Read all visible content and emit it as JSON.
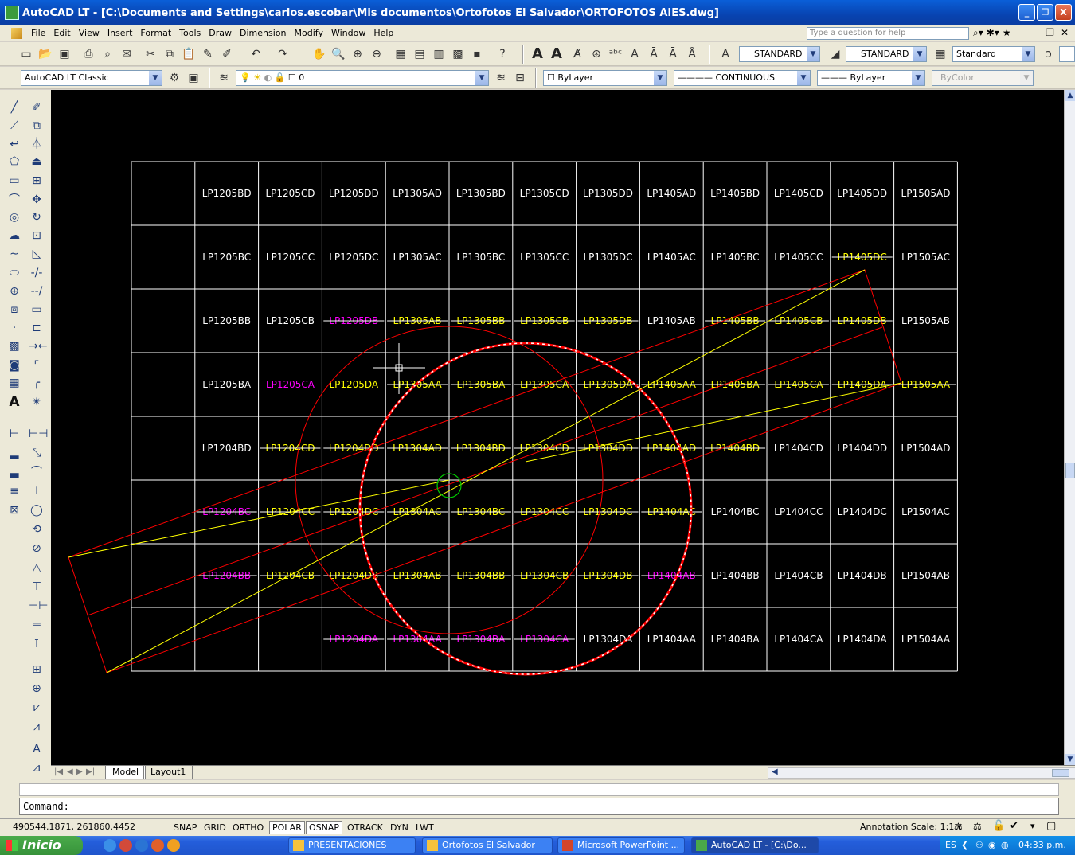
{
  "window": {
    "title": "AutoCAD LT - [C:\\Documents and Settings\\carlos.escobar\\Mis documentos\\Ortofotos El Salvador\\ORTOFOTOS AIES.dwg]",
    "buttons": [
      "_",
      "❐",
      "X"
    ]
  },
  "menubar": {
    "items": [
      "File",
      "Edit",
      "View",
      "Insert",
      "Format",
      "Tools",
      "Draw",
      "Dimension",
      "Modify",
      "Window",
      "Help"
    ],
    "help_placeholder": "Type a question for help"
  },
  "toolbar": {
    "text_style": "STANDARD",
    "dim_style": "STANDARD",
    "table_style": "Standard",
    "workspace": "AutoCAD LT Classic",
    "layer": "0",
    "color": "ByLayer",
    "linetype": "CONTINUOUS",
    "lineweight": "ByLayer",
    "plotstyle": "ByColor"
  },
  "drawing": {
    "grid": {
      "rows": [
        [
          "",
          "LP1205BD",
          "LP1205CD",
          "LP1205DD",
          "LP1305AD",
          "LP1305BD",
          "LP1305CD",
          "LP1305DD",
          "LP1405AD",
          "LP1405BD",
          "LP1405CD",
          "LP1405DD",
          "LP1505AD"
        ],
        [
          "",
          "LP1205BC",
          "LP1205CC",
          "LP1205DC",
          "LP1305AC",
          "LP1305BC",
          "LP1305CC",
          "LP1305DC",
          "LP1405AC",
          "LP1405BC",
          "LP1405CC",
          "LP1405DC",
          "LP1505AC"
        ],
        [
          "",
          "LP1205BB",
          "LP1205CB",
          "LP1205DB",
          "LP1305AB",
          "LP1305BB",
          "LP1305CB",
          "LP1305DB",
          "LP1405AB",
          "LP1405BB",
          "LP1405CB",
          "LP1405DB",
          "LP1505AB"
        ],
        [
          "",
          "LP1205BA",
          "LP1205CA",
          "LP1205DA",
          "LP1305AA",
          "LP1305BA",
          "LP1305CA",
          "LP1305DA",
          "LP1405AA",
          "LP1405BA",
          "LP1405CA",
          "LP1405DA",
          "LP1505AA"
        ],
        [
          "",
          "LP1204BD",
          "LP1204CD",
          "LP1204DD",
          "LP1304AD",
          "LP1304BD",
          "LP1304CD",
          "LP1304DD",
          "LP1404AD",
          "LP1404BD",
          "LP1404CD",
          "LP1404DD",
          "LP1504AD"
        ],
        [
          "",
          "LP1204BC",
          "LP1204CC",
          "LP1204DC",
          "LP1304AC",
          "LP1304BC",
          "LP1304CC",
          "LP1304DC",
          "LP1404AC",
          "LP1404BC",
          "LP1404CC",
          "LP1404DC",
          "LP1504AC"
        ],
        [
          "",
          "LP1204BB",
          "LP1204CB",
          "LP1204DB",
          "LP1304AB",
          "LP1304BB",
          "LP1304CB",
          "LP1304DB",
          "LP1404AB",
          "LP1404BB",
          "LP1404CB",
          "LP1404DB",
          "LP1504AB"
        ],
        [
          "",
          "",
          "",
          "LP1204DA",
          "LP1304AA",
          "LP1304BA",
          "LP1304CA",
          "LP1304DA",
          "LP1404AA",
          "LP1404BA",
          "LP1404CA",
          "LP1404DA",
          "LP1504AA"
        ]
      ],
      "styles": [
        [
          "n",
          "w",
          "w",
          "w",
          "w",
          "w",
          "w",
          "w",
          "w",
          "w",
          "w",
          "w",
          "w"
        ],
        [
          "n",
          "w",
          "w",
          "w",
          "w",
          "w",
          "w",
          "w",
          "w",
          "w",
          "w",
          "ys",
          "w"
        ],
        [
          "n",
          "w",
          "w",
          "ms",
          "ys",
          "ys",
          "ys",
          "ys",
          "w",
          "ys",
          "ys",
          "ys",
          "w"
        ],
        [
          "n",
          "w",
          "m",
          "y",
          "ys",
          "ys",
          "ys",
          "ys",
          "ys",
          "ys",
          "ys",
          "ys",
          "ys"
        ],
        [
          "n",
          "w",
          "ys",
          "ys",
          "ys",
          "ys",
          "ys",
          "ys",
          "ys",
          "ys",
          "w",
          "w",
          "w"
        ],
        [
          "n",
          "ms",
          "ys",
          "ys",
          "ys",
          "ys",
          "ys",
          "ys",
          "ys",
          "w",
          "w",
          "w",
          "w"
        ],
        [
          "n",
          "ms",
          "ys",
          "ys",
          "ys",
          "ys",
          "ys",
          "ys",
          "ms",
          "w",
          "w",
          "w",
          "w"
        ],
        [
          "n",
          "n",
          "n",
          "ms",
          "ms",
          "ms",
          "ms",
          "w",
          "w",
          "w",
          "w",
          "w",
          "w"
        ]
      ],
      "colors": {
        "w": "#ffffff",
        "y": "#ffff00",
        "m": "#ff00ff",
        "grid_line": "#ffffff",
        "circle": "#ff0000",
        "line_yellow": "#ffff00",
        "snap_circle": "#00cc00"
      }
    }
  },
  "layout_tabs": [
    "Model",
    "Layout1"
  ],
  "command": {
    "prompt": "Command:"
  },
  "status": {
    "coords": "490544.1871, 261860.4452",
    "toggles": [
      "SNAP",
      "GRID",
      "ORTHO",
      "POLAR",
      "OSNAP",
      "OTRACK",
      "DYN",
      "LWT"
    ],
    "active_toggles": [
      "POLAR",
      "OSNAP"
    ],
    "annotation_scale": "Annotation Scale:  1:1 ▾"
  },
  "taskbar": {
    "start": "Inicio",
    "items": [
      "PRESENTACIONES",
      "Ortofotos El Salvador",
      "Microsoft PowerPoint ...",
      "AutoCAD LT - [C:\\Do..."
    ],
    "language": "ES",
    "clock": "04:33 p.m."
  }
}
